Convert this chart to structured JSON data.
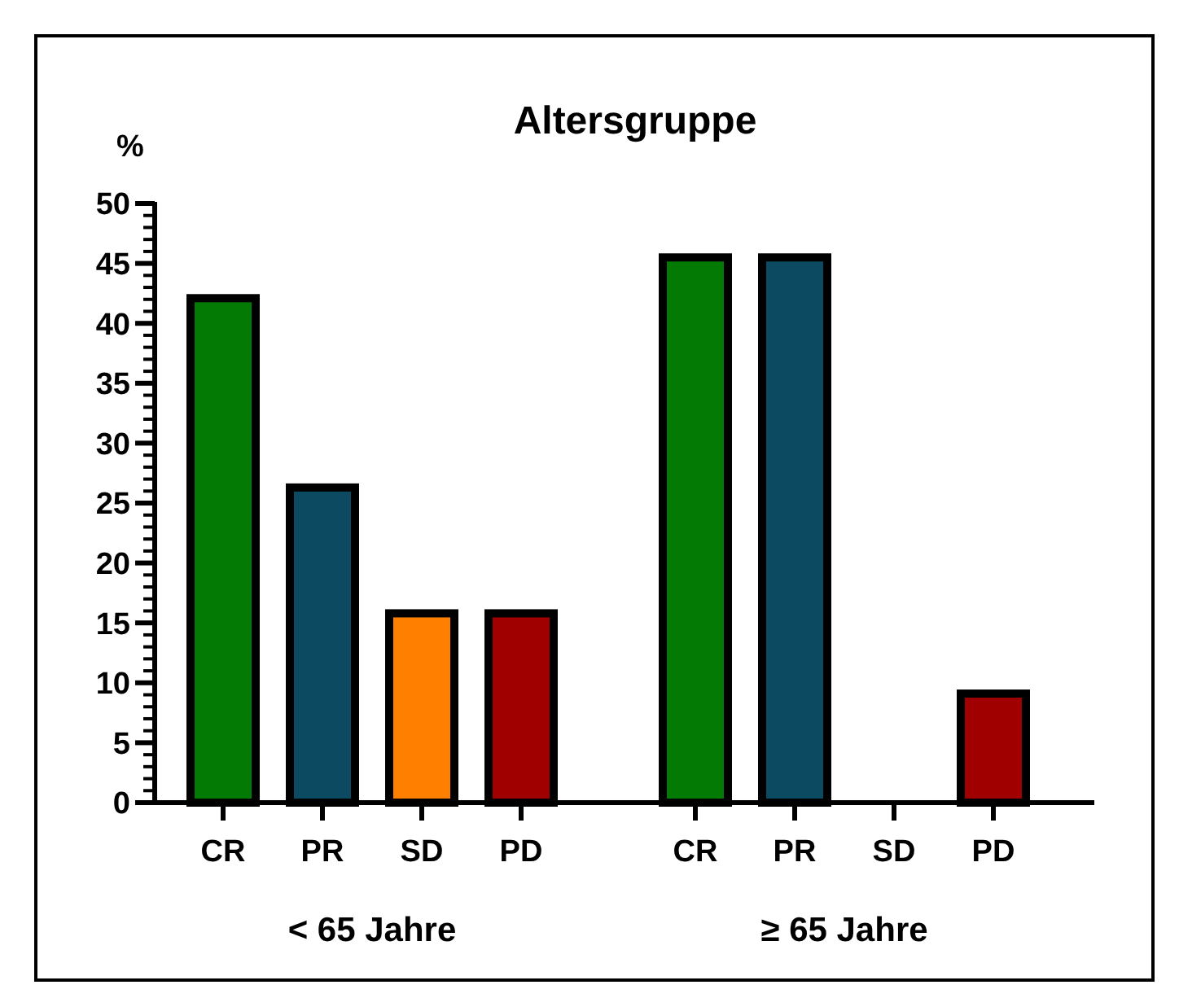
{
  "chart_data": [
    {
      "type": "bar",
      "title": "Altersgruppe",
      "ylabel": "%",
      "xlabel": "< 65 Jahre",
      "categories": [
        "CR",
        "PR",
        "SD",
        "PD"
      ],
      "values": [
        42.1,
        26.3,
        15.8,
        15.8
      ],
      "colors": [
        "#037a03",
        "#0c4a62",
        "#ff8000",
        "#a00000"
      ],
      "ylim": [
        0,
        50
      ],
      "yticks": [
        0,
        {
          "value": 1,
          "label": null
        },
        {
          "value": 2,
          "label": null
        },
        {
          "value": 3,
          "label": null
        },
        {
          "value": 4,
          "label": null
        },
        5,
        {
          "value": 6,
          "label": null
        },
        {
          "value": 7,
          "label": null
        },
        {
          "value": 8,
          "label": null
        },
        {
          "value": 9,
          "label": null
        },
        10,
        {
          "value": 11,
          "label": null
        },
        {
          "value": 12,
          "label": null
        },
        {
          "value": 13,
          "label": null
        },
        {
          "value": 14,
          "label": null
        },
        15,
        {
          "value": 16,
          "label": null
        },
        {
          "value": 17,
          "label": null
        },
        {
          "value": 18,
          "label": null
        },
        {
          "value": 19,
          "label": null
        },
        20,
        {
          "value": 21,
          "label": null
        },
        {
          "value": 22,
          "label": null
        },
        {
          "value": 23,
          "label": null
        },
        {
          "value": 24,
          "label": null
        },
        25,
        {
          "value": 26,
          "label": null
        },
        {
          "value": 27,
          "label": null
        },
        {
          "value": 28,
          "label": null
        },
        {
          "value": 29,
          "label": null
        },
        30,
        {
          "value": 31,
          "label": null
        },
        {
          "value": 32,
          "label": null
        },
        {
          "value": 33,
          "label": null
        },
        {
          "value": 34,
          "label": null
        },
        35,
        {
          "value": 36,
          "label": null
        },
        {
          "value": 37,
          "label": null
        },
        {
          "value": 38,
          "label": null
        },
        {
          "value": 39,
          "label": null
        },
        40,
        {
          "value": 41,
          "label": null
        },
        {
          "value": 42,
          "label": null
        },
        {
          "value": 43,
          "label": null
        },
        {
          "value": 44,
          "label": null
        },
        45,
        {
          "value": 46,
          "label": null
        },
        {
          "value": 47,
          "label": null
        },
        {
          "value": 48,
          "label": null
        },
        {
          "value": 49,
          "label": null
        },
        50
      ]
    },
    {
      "type": "bar",
      "xlabel": "≥ 65 Jahre",
      "categories": [
        "CR",
        "PR",
        "SD",
        "PD"
      ],
      "values": [
        45.5,
        45.5,
        0,
        9.1
      ],
      "colors": [
        "#037a03",
        "#0c4a62",
        "#ff8000",
        "#a00000"
      ],
      "ylim": [
        0,
        50
      ],
      "tick_labels": "x"
    }
  ]
}
